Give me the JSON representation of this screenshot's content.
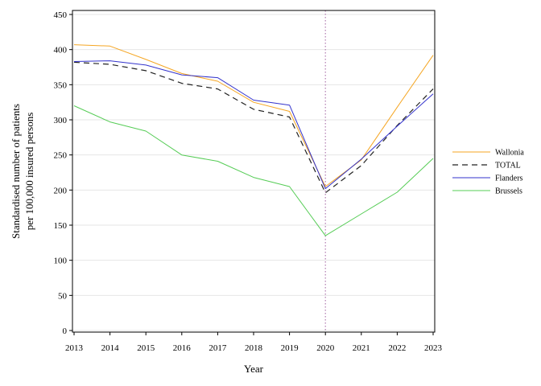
{
  "chart_data": {
    "type": "line",
    "title": "",
    "xlabel": "Year",
    "ylabel_lines": [
      "Standardised number of patients",
      "per 100,000 insured persons"
    ],
    "x": [
      2013,
      2014,
      2015,
      2016,
      2017,
      2018,
      2019,
      2020,
      2021,
      2022,
      2023
    ],
    "xlim": [
      2013,
      2023
    ],
    "ylim": [
      0,
      450
    ],
    "yticks": [
      0,
      50,
      100,
      150,
      200,
      250,
      300,
      350,
      400,
      450
    ],
    "grid": "horizontal",
    "legend_position": "right",
    "reference_line": {
      "x": 2020,
      "style": "dotted",
      "color": "#b07ab0"
    },
    "series": [
      {
        "name": "Wallonia",
        "color": "#f5a623",
        "dash": "",
        "width": 1,
        "values": [
          407,
          405,
          386,
          366,
          355,
          325,
          312,
          205,
          243,
          318,
          392
        ]
      },
      {
        "name": "TOTAL",
        "color": "#222222",
        "dash": "7,5",
        "width": 1.2,
        "values": [
          382,
          379,
          370,
          352,
          344,
          315,
          304,
          196,
          235,
          292,
          344
        ]
      },
      {
        "name": "Flanders",
        "color": "#3333cc",
        "dash": "",
        "width": 1,
        "values": [
          383,
          384,
          378,
          364,
          360,
          328,
          321,
          202,
          244,
          291,
          337
        ]
      },
      {
        "name": "Brussels",
        "color": "#55cc55",
        "dash": "",
        "width": 1,
        "values": [
          320,
          297,
          284,
          250,
          241,
          218,
          205,
          135,
          166,
          197,
          245
        ]
      }
    ]
  }
}
